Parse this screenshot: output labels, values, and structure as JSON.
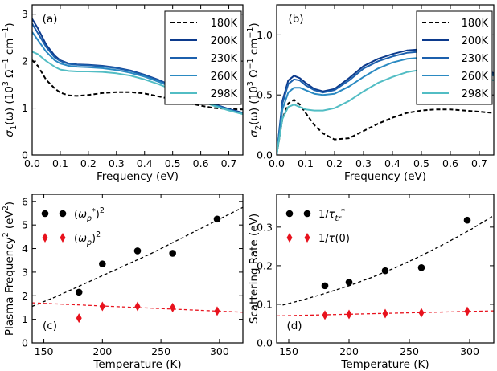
{
  "chart_data": [
    {
      "panel": "(a)",
      "type": "line",
      "xlabel": "Frequency (eV)",
      "ylabel": "σ1(ω)  (10³ Ω⁻¹ cm⁻¹)",
      "ylabel_parts": {
        "sym": "σ",
        "sub": "1",
        "arg": "(ω)",
        "unit": "(10",
        "exp": "3",
        "unit2": " Ω",
        "exp2": "−1",
        "unit3": " cm",
        "exp3": "−1",
        "unit4": ")"
      },
      "xlim": [
        0,
        0.75
      ],
      "ylim": [
        0,
        3.2
      ],
      "xticks": [
        "0.0",
        "0.1",
        "0.2",
        "0.3",
        "0.4",
        "0.5",
        "0.6",
        "0.7"
      ],
      "xtick_values": [
        0,
        0.1,
        0.2,
        0.3,
        0.4,
        0.5,
        0.6,
        0.7
      ],
      "yticks": [
        "0",
        "1",
        "2",
        "3"
      ],
      "ytick_values": [
        0,
        1,
        2,
        3
      ],
      "legend": "top-right",
      "series": [
        {
          "name": "180K",
          "color": "#000000",
          "dash": true,
          "x": [
            0,
            0.02,
            0.05,
            0.08,
            0.1,
            0.13,
            0.16,
            0.2,
            0.25,
            0.3,
            0.35,
            0.4,
            0.45,
            0.5,
            0.55,
            0.6,
            0.65,
            0.7,
            0.75
          ],
          "y": [
            2.02,
            1.9,
            1.6,
            1.42,
            1.33,
            1.27,
            1.26,
            1.28,
            1.32,
            1.34,
            1.34,
            1.31,
            1.25,
            1.18,
            1.11,
            1.05,
            1.0,
            0.98,
            0.97
          ]
        },
        {
          "name": "200K",
          "color": "#0c3a8c",
          "dash": false,
          "x": [
            0,
            0.02,
            0.05,
            0.08,
            0.1,
            0.13,
            0.16,
            0.2,
            0.25,
            0.3,
            0.35,
            0.4,
            0.45,
            0.5,
            0.55,
            0.6,
            0.65,
            0.7,
            0.75
          ],
          "y": [
            2.9,
            2.7,
            2.35,
            2.12,
            2.02,
            1.95,
            1.93,
            1.92,
            1.9,
            1.86,
            1.8,
            1.71,
            1.6,
            1.47,
            1.33,
            1.2,
            1.08,
            0.98,
            0.9
          ]
        },
        {
          "name": "230K",
          "color": "#1c60ad",
          "dash": false,
          "x": [
            0,
            0.02,
            0.05,
            0.08,
            0.1,
            0.13,
            0.16,
            0.2,
            0.25,
            0.3,
            0.35,
            0.4,
            0.45,
            0.5,
            0.55,
            0.6,
            0.65,
            0.7,
            0.75
          ],
          "y": [
            2.8,
            2.6,
            2.3,
            2.08,
            2.0,
            1.94,
            1.92,
            1.91,
            1.89,
            1.85,
            1.79,
            1.7,
            1.59,
            1.46,
            1.32,
            1.19,
            1.07,
            0.97,
            0.89
          ]
        },
        {
          "name": "260K",
          "color": "#2b8ac2",
          "dash": false,
          "x": [
            0,
            0.02,
            0.05,
            0.08,
            0.1,
            0.13,
            0.16,
            0.2,
            0.25,
            0.3,
            0.35,
            0.4,
            0.45,
            0.5,
            0.55,
            0.6,
            0.65,
            0.7,
            0.75
          ],
          "y": [
            2.62,
            2.45,
            2.2,
            2.02,
            1.95,
            1.9,
            1.88,
            1.87,
            1.85,
            1.81,
            1.75,
            1.67,
            1.56,
            1.44,
            1.3,
            1.17,
            1.06,
            0.96,
            0.88
          ]
        },
        {
          "name": "298K",
          "color": "#52bdc4",
          "dash": false,
          "x": [
            0,
            0.02,
            0.05,
            0.08,
            0.1,
            0.13,
            0.16,
            0.2,
            0.25,
            0.3,
            0.35,
            0.4,
            0.45,
            0.5,
            0.55,
            0.6,
            0.65,
            0.7,
            0.75
          ],
          "y": [
            2.2,
            2.15,
            2.0,
            1.88,
            1.82,
            1.79,
            1.78,
            1.78,
            1.77,
            1.74,
            1.69,
            1.61,
            1.51,
            1.39,
            1.27,
            1.15,
            1.04,
            0.95,
            0.87
          ]
        }
      ]
    },
    {
      "panel": "(b)",
      "type": "line",
      "xlabel": "Frequency (eV)",
      "ylabel": "σ2(ω)  (10³ Ω⁻¹ cm⁻¹)",
      "ylabel_parts": {
        "sym": "σ",
        "sub": "2",
        "arg": "(ω)",
        "unit": "(10",
        "exp": "3",
        "unit2": " Ω",
        "exp2": "−1",
        "unit3": " cm",
        "exp3": "−1",
        "unit4": ")"
      },
      "xlim": [
        0,
        0.75
      ],
      "ylim": [
        0,
        1.25
      ],
      "xticks": [
        "0.0",
        "0.1",
        "0.2",
        "0.3",
        "0.4",
        "0.5",
        "0.6",
        "0.7"
      ],
      "xtick_values": [
        0,
        0.1,
        0.2,
        0.3,
        0.4,
        0.5,
        0.6,
        0.7
      ],
      "yticks": [
        "0.0",
        "0.5",
        "1.0"
      ],
      "ytick_values": [
        0,
        0.5,
        1.0
      ],
      "legend": "top-right",
      "series": [
        {
          "name": "180K",
          "color": "#000000",
          "dash": true,
          "x": [
            0,
            0.02,
            0.04,
            0.06,
            0.08,
            0.1,
            0.13,
            0.16,
            0.2,
            0.25,
            0.3,
            0.35,
            0.4,
            0.45,
            0.5,
            0.55,
            0.6,
            0.65,
            0.7,
            0.75
          ],
          "y": [
            0,
            0.3,
            0.43,
            0.46,
            0.42,
            0.35,
            0.25,
            0.18,
            0.13,
            0.14,
            0.2,
            0.26,
            0.31,
            0.35,
            0.37,
            0.38,
            0.38,
            0.37,
            0.36,
            0.35
          ]
        },
        {
          "name": "200K",
          "color": "#0c3a8c",
          "dash": false,
          "x": [
            0,
            0.02,
            0.04,
            0.06,
            0.08,
            0.1,
            0.13,
            0.16,
            0.2,
            0.25,
            0.3,
            0.35,
            0.4,
            0.45,
            0.5,
            0.55,
            0.6,
            0.65,
            0.7,
            0.75
          ],
          "y": [
            0,
            0.45,
            0.62,
            0.66,
            0.64,
            0.6,
            0.55,
            0.53,
            0.55,
            0.64,
            0.74,
            0.8,
            0.84,
            0.87,
            0.88,
            0.87,
            0.84,
            0.8,
            0.74,
            0.68
          ]
        },
        {
          "name": "230K",
          "color": "#1c60ad",
          "dash": false,
          "x": [
            0,
            0.02,
            0.04,
            0.06,
            0.08,
            0.1,
            0.13,
            0.16,
            0.2,
            0.25,
            0.3,
            0.35,
            0.4,
            0.45,
            0.5,
            0.55,
            0.6,
            0.65,
            0.7,
            0.75
          ],
          "y": [
            0,
            0.43,
            0.59,
            0.63,
            0.62,
            0.58,
            0.54,
            0.52,
            0.54,
            0.62,
            0.72,
            0.78,
            0.82,
            0.85,
            0.86,
            0.85,
            0.83,
            0.79,
            0.73,
            0.67
          ]
        },
        {
          "name": "260K",
          "color": "#2b8ac2",
          "dash": false,
          "x": [
            0,
            0.02,
            0.04,
            0.06,
            0.08,
            0.1,
            0.13,
            0.16,
            0.2,
            0.25,
            0.3,
            0.35,
            0.4,
            0.45,
            0.5,
            0.55,
            0.6,
            0.65,
            0.7,
            0.75
          ],
          "y": [
            0,
            0.38,
            0.52,
            0.56,
            0.56,
            0.54,
            0.51,
            0.5,
            0.51,
            0.57,
            0.65,
            0.72,
            0.77,
            0.8,
            0.81,
            0.81,
            0.79,
            0.76,
            0.71,
            0.66
          ]
        },
        {
          "name": "298K",
          "color": "#52bdc4",
          "dash": false,
          "x": [
            0,
            0.02,
            0.04,
            0.06,
            0.08,
            0.1,
            0.13,
            0.16,
            0.2,
            0.25,
            0.3,
            0.35,
            0.4,
            0.45,
            0.5,
            0.55,
            0.6,
            0.65,
            0.7,
            0.75
          ],
          "y": [
            0,
            0.3,
            0.4,
            0.42,
            0.4,
            0.38,
            0.37,
            0.37,
            0.39,
            0.45,
            0.53,
            0.6,
            0.65,
            0.69,
            0.71,
            0.72,
            0.71,
            0.69,
            0.66,
            0.62
          ]
        }
      ]
    },
    {
      "panel": "(c)",
      "type": "scatter",
      "xlabel": "Temperature  (K)",
      "ylabel": "Plasma Frequency²  (eV²)",
      "ylabel_parts": {
        "text": "Plasma Frequency",
        "sup": "2",
        "unit": "(eV",
        "unitsup": "2",
        "unitend": ")"
      },
      "xlim": [
        140,
        320
      ],
      "ylim": [
        0,
        6.3
      ],
      "xticks": [
        "150",
        "200",
        "250",
        "300"
      ],
      "xtick_values": [
        150,
        200,
        250,
        300
      ],
      "yticks": [
        "0",
        "1",
        "2",
        "3",
        "4",
        "5",
        "6"
      ],
      "ytick_values": [
        0,
        1,
        2,
        3,
        4,
        5,
        6
      ],
      "legend": "top-left",
      "series": [
        {
          "name": "(ωp*)²",
          "name_parts": {
            "pre": "(ω",
            "sub": "p",
            "sup": "*",
            "post": ")",
            "exp": "2"
          },
          "marker": "circle",
          "color": "#000000",
          "x": [
            180,
            200,
            230,
            260,
            298
          ],
          "y": [
            2.15,
            3.35,
            3.9,
            3.8,
            5.25
          ],
          "fit": {
            "x": [
              140,
              160,
              180,
              200,
              220,
              240,
              260,
              280,
              300,
              320
            ],
            "y": [
              1.55,
              1.95,
              2.4,
              2.85,
              3.3,
              3.75,
              4.25,
              4.75,
              5.25,
              5.75
            ]
          }
        },
        {
          "name": "(ωp)²",
          "name_parts": {
            "pre": "(ω",
            "sub": "p",
            "sup": "",
            "post": ")",
            "exp": "2"
          },
          "marker": "diamond",
          "color": "#e8121d",
          "x": [
            180,
            200,
            230,
            260,
            298
          ],
          "y": [
            1.05,
            1.55,
            1.55,
            1.5,
            1.35
          ],
          "fit": {
            "x": [
              140,
              320
            ],
            "y": [
              1.7,
              1.3
            ]
          }
        }
      ]
    },
    {
      "panel": "(d)",
      "type": "scatter",
      "xlabel": "Temperature  (K)",
      "ylabel": "Scattering Rate  (eV)",
      "ylabel_parts": {
        "text": "Scattering Rate",
        "unit": "(eV)"
      },
      "xlim": [
        140,
        320
      ],
      "ylim": [
        0,
        0.385
      ],
      "xticks": [
        "150",
        "200",
        "250",
        "300"
      ],
      "xtick_values": [
        150,
        200,
        250,
        300
      ],
      "yticks": [
        "0.0",
        "0.1",
        "0.2",
        "0.3"
      ],
      "ytick_values": [
        0,
        0.1,
        0.2,
        0.3
      ],
      "legend": "top-left",
      "series": [
        {
          "name": "1/τtr*",
          "name_parts": {
            "pre": "1/τ",
            "sub": "tr",
            "sup": "*"
          },
          "marker": "circle",
          "color": "#000000",
          "x": [
            180,
            200,
            230,
            260,
            298
          ],
          "y": [
            0.148,
            0.157,
            0.187,
            0.195,
            0.318
          ],
          "fit": {
            "x": [
              145,
              160,
              180,
              200,
              220,
              240,
              260,
              280,
              300,
              320
            ],
            "y": [
              0.098,
              0.11,
              0.128,
              0.148,
              0.171,
              0.197,
              0.226,
              0.258,
              0.292,
              0.33
            ]
          }
        },
        {
          "name": "1/τ(0)",
          "name_parts": {
            "pre": "1/τ(0)",
            "sub": "",
            "sup": ""
          },
          "marker": "diamond",
          "color": "#e8121d",
          "x": [
            180,
            200,
            230,
            260,
            298
          ],
          "y": [
            0.072,
            0.074,
            0.076,
            0.078,
            0.082
          ],
          "fit": {
            "x": [
              140,
              320
            ],
            "y": [
              0.07,
              0.083
            ]
          }
        }
      ]
    }
  ]
}
